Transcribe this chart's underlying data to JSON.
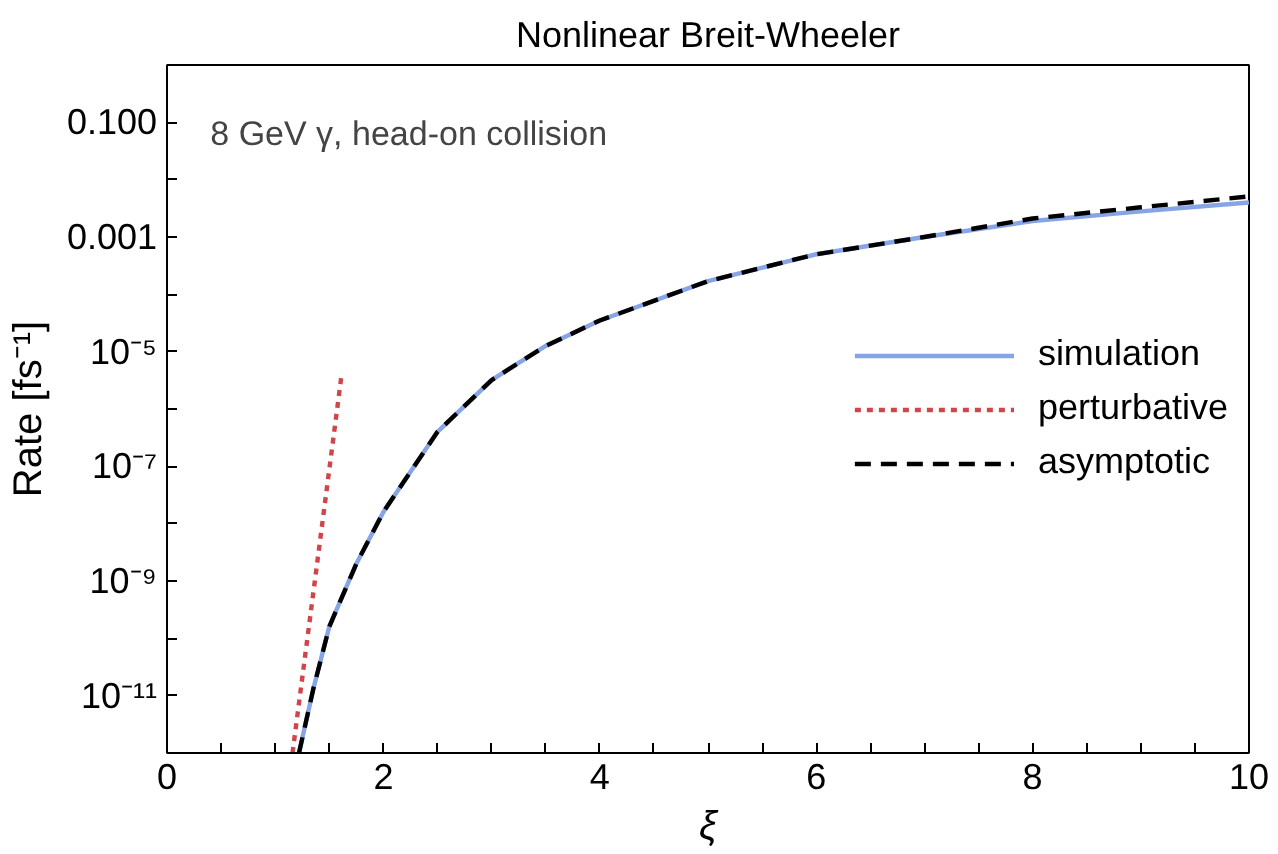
{
  "chart_data": {
    "type": "line",
    "title": "Nonlinear Breit-Wheeler",
    "xlabel": "ξ",
    "ylabel": "Rate [fs⁻¹]",
    "annotations": [
      "8 GeV γ, head-on collision"
    ],
    "log": "y",
    "xlim": [
      0,
      10
    ],
    "ylim": [
      1e-12,
      1
    ],
    "xticks": [
      0,
      {
        "value": 0.5,
        "label": null
      },
      {
        "value": 1,
        "label": null
      },
      {
        "value": 1.5,
        "label": null
      },
      2,
      {
        "value": 2.5,
        "label": null
      },
      {
        "value": 3,
        "label": null
      },
      {
        "value": 3.5,
        "label": null
      },
      4,
      {
        "value": 4.5,
        "label": null
      },
      {
        "value": 5,
        "label": null
      },
      {
        "value": 5.5,
        "label": null
      },
      6,
      {
        "value": 6.5,
        "label": null
      },
      {
        "value": 7,
        "label": null
      },
      {
        "value": 7.5,
        "label": null
      },
      8,
      {
        "value": 8.5,
        "label": null
      },
      {
        "value": 9,
        "label": null
      },
      {
        "value": 9.5,
        "label": null
      },
      10
    ],
    "yticks": [
      {
        "value": 1e-12,
        "label": null
      },
      {
        "value": 1e-11,
        "label": "10⁻¹¹"
      },
      {
        "value": 1e-10,
        "label": null
      },
      {
        "value": 1e-09,
        "label": "10⁻⁹"
      },
      {
        "value": 1e-08,
        "label": null
      },
      {
        "value": 1e-07,
        "label": "10⁻⁷"
      },
      {
        "value": 1e-06,
        "label": null
      },
      {
        "value": 1e-05,
        "label": "10⁻⁵"
      },
      {
        "value": 0.0001,
        "label": null
      },
      {
        "value": 0.001,
        "label": "0.001"
      },
      {
        "value": 0.01,
        "label": null
      },
      {
        "value": 0.1,
        "label": "0.100"
      },
      {
        "value": 1,
        "label": null
      }
    ],
    "grid": false,
    "legend": "right",
    "series": [
      {
        "name": "simulation",
        "color": "#87a4e6",
        "line_style": "solid",
        "x": [
          1.22,
          1.35,
          1.5,
          1.75,
          2.0,
          2.5,
          3.0,
          3.5,
          4.0,
          5,
          6,
          7,
          8,
          9,
          10
        ],
        "values": [
          1e-12,
          1.26e-11,
          1.6e-10,
          2e-09,
          1.6e-08,
          4e-07,
          3.2e-06,
          1.26e-05,
          3.5e-05,
          0.00017,
          0.0005,
          0.001,
          0.0019,
          0.0028,
          0.004
        ]
      },
      {
        "name": "perturbative",
        "color": "#d0454a",
        "line_style": "dotted",
        "x": [
          1.16,
          1.61
        ],
        "values": [
          1e-12,
          3.5e-06
        ]
      },
      {
        "name": "asymptotic",
        "color": "#000000",
        "line_style": "dashed",
        "x": [
          1.22,
          1.35,
          1.5,
          1.75,
          2.0,
          2.5,
          3.0,
          3.5,
          4.0,
          5,
          6,
          7,
          8,
          9,
          10
        ],
        "values": [
          1e-12,
          1.26e-11,
          1.6e-10,
          2e-09,
          1.6e-08,
          4e-07,
          3.2e-06,
          1.26e-05,
          3.5e-05,
          0.00017,
          0.0005,
          0.001,
          0.0021,
          0.0033,
          0.0051
        ]
      }
    ]
  }
}
